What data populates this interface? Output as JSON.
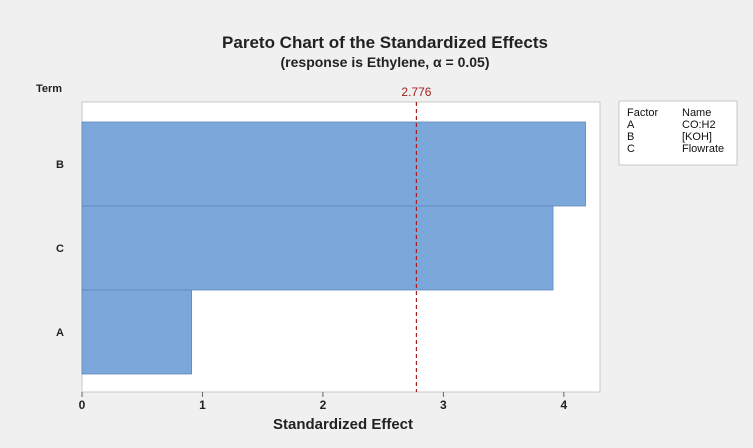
{
  "chart_data": {
    "type": "bar",
    "orientation": "horizontal",
    "title": "Pareto Chart of the Standardized Effects",
    "subtitle": "(response is Ethylene, α = 0.05)",
    "xlabel": "Standardized Effect",
    "ylabel": "Term",
    "categories": [
      "B",
      "C",
      "A"
    ],
    "values": [
      4.18,
      3.91,
      0.91
    ],
    "xlim": [
      0,
      4.3
    ],
    "xticks": [
      "0",
      "1",
      "2",
      "3",
      "4"
    ],
    "reference_line": {
      "value": 2.776,
      "label": "2.776",
      "color": "#a32020"
    },
    "bar_color": "#7ba7da",
    "legend": {
      "position": "right",
      "headers": [
        "Factor",
        "Name"
      ],
      "entries": [
        {
          "factor": "A",
          "name": "CO:H2"
        },
        {
          "factor": "B",
          "name": "[KOH]"
        },
        {
          "factor": "C",
          "name": "Flowrate"
        }
      ]
    }
  }
}
